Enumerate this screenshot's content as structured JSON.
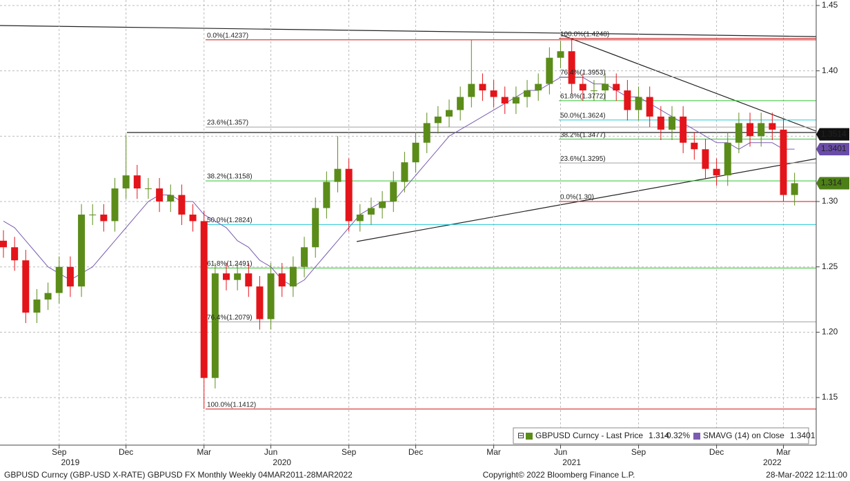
{
  "chart_data": {
    "type": "candlestick",
    "categories": [
      null,
      null,
      null,
      null,
      null,
      "Sep",
      null,
      null,
      null,
      null,
      null,
      "Dec",
      null,
      null,
      null,
      null,
      null,
      null,
      "Mar",
      null,
      null,
      null,
      null,
      null,
      "Jun",
      null,
      null,
      null,
      null,
      null,
      null,
      "Sep",
      null,
      null,
      null,
      null,
      null,
      "Dec",
      null,
      null,
      null,
      null,
      null,
      null,
      "Mar",
      null,
      null,
      null,
      null,
      null,
      "Jun",
      null,
      null,
      null,
      null,
      null,
      null,
      "Sep",
      null,
      null,
      null,
      null,
      null,
      null,
      "Dec",
      null,
      null,
      null,
      null,
      null,
      "Mar",
      null
    ],
    "years": [
      null,
      null,
      null,
      null,
      null,
      null,
      "2019",
      null,
      null,
      null,
      null,
      null,
      null,
      null,
      null,
      null,
      null,
      null,
      null,
      null,
      null,
      null,
      null,
      null,
      null,
      "2020",
      null,
      null,
      null,
      null,
      null,
      null,
      null,
      null,
      null,
      null,
      null,
      null,
      null,
      null,
      null,
      null,
      null,
      null,
      null,
      null,
      null,
      null,
      null,
      null,
      null,
      "2021",
      null,
      null,
      null,
      null,
      null,
      null,
      null,
      null,
      null,
      null,
      null,
      null,
      null,
      null,
      null,
      null,
      null,
      "2022",
      null,
      null
    ],
    "open": [
      1.27,
      1.265,
      1.255,
      1.215,
      1.225,
      1.23,
      1.25,
      1.235,
      1.29,
      1.29,
      1.285,
      1.31,
      1.32,
      1.31,
      1.31,
      1.3,
      1.305,
      1.29,
      1.285,
      1.165,
      1.245,
      1.24,
      1.245,
      1.235,
      1.21,
      1.245,
      1.235,
      1.25,
      1.265,
      1.295,
      1.315,
      1.325,
      1.285,
      1.29,
      1.295,
      1.3,
      1.315,
      1.33,
      1.345,
      1.36,
      1.365,
      1.37,
      1.38,
      1.39,
      1.385,
      1.38,
      1.375,
      1.38,
      1.385,
      1.39,
      1.41,
      1.415,
      1.39,
      1.385,
      1.385,
      1.39,
      1.385,
      1.37,
      1.38,
      1.365,
      1.355,
      1.365,
      1.345,
      1.34,
      1.325,
      1.32,
      1.345,
      1.36,
      1.35,
      1.36,
      1.355,
      1.305
    ],
    "high": [
      1.278,
      1.273,
      1.263,
      1.233,
      1.238,
      1.258,
      1.258,
      1.298,
      1.298,
      1.298,
      1.318,
      1.351,
      1.328,
      1.318,
      1.318,
      1.313,
      1.313,
      1.298,
      1.293,
      1.253,
      1.253,
      1.253,
      1.253,
      1.243,
      1.253,
      1.253,
      1.258,
      1.273,
      1.303,
      1.323,
      1.35,
      1.333,
      1.298,
      1.303,
      1.308,
      1.323,
      1.338,
      1.353,
      1.368,
      1.373,
      1.378,
      1.388,
      1.424,
      1.398,
      1.393,
      1.388,
      1.388,
      1.393,
      1.398,
      1.418,
      1.423,
      1.4248,
      1.398,
      1.393,
      1.398,
      1.398,
      1.393,
      1.388,
      1.388,
      1.373,
      1.373,
      1.373,
      1.353,
      1.348,
      1.333,
      1.353,
      1.368,
      1.368,
      1.368,
      1.368,
      1.363,
      1.322
    ],
    "low": [
      1.257,
      1.247,
      1.207,
      1.207,
      1.217,
      1.222,
      1.227,
      1.227,
      1.282,
      1.277,
      1.277,
      1.302,
      1.302,
      1.302,
      1.292,
      1.292,
      1.282,
      1.277,
      1.1412,
      1.157,
      1.232,
      1.232,
      1.227,
      1.202,
      1.202,
      1.227,
      1.227,
      1.242,
      1.257,
      1.287,
      1.307,
      1.277,
      1.277,
      1.282,
      1.287,
      1.292,
      1.307,
      1.322,
      1.337,
      1.352,
      1.357,
      1.362,
      1.372,
      1.377,
      1.372,
      1.367,
      1.367,
      1.372,
      1.377,
      1.382,
      1.402,
      1.382,
      1.377,
      1.377,
      1.377,
      1.377,
      1.362,
      1.362,
      1.357,
      1.347,
      1.347,
      1.337,
      1.332,
      1.317,
      1.312,
      1.312,
      1.337,
      1.342,
      1.342,
      1.347,
      1.3,
      1.297
    ],
    "close": [
      1.265,
      1.255,
      1.215,
      1.225,
      1.23,
      1.25,
      1.235,
      1.29,
      1.29,
      1.285,
      1.31,
      1.32,
      1.31,
      1.31,
      1.3,
      1.305,
      1.29,
      1.285,
      1.165,
      1.245,
      1.24,
      1.245,
      1.235,
      1.21,
      1.245,
      1.235,
      1.25,
      1.265,
      1.295,
      1.315,
      1.325,
      1.285,
      1.29,
      1.295,
      1.3,
      1.315,
      1.33,
      1.345,
      1.36,
      1.365,
      1.37,
      1.38,
      1.39,
      1.385,
      1.38,
      1.375,
      1.38,
      1.385,
      1.39,
      1.41,
      1.415,
      1.39,
      1.385,
      1.385,
      1.39,
      1.385,
      1.37,
      1.38,
      1.365,
      1.355,
      1.365,
      1.345,
      1.34,
      1.325,
      1.32,
      1.345,
      1.36,
      1.35,
      1.36,
      1.355,
      1.305,
      1.314
    ],
    "sma": [
      1.285,
      1.28,
      1.27,
      1.26,
      1.25,
      1.245,
      1.24,
      1.245,
      1.25,
      1.26,
      1.27,
      1.28,
      1.29,
      1.3,
      1.305,
      1.305,
      1.3,
      1.3,
      1.29,
      1.285,
      1.28,
      1.27,
      1.265,
      1.255,
      1.25,
      1.24,
      1.235,
      1.24,
      1.25,
      1.26,
      1.27,
      1.28,
      1.29,
      1.295,
      1.3,
      1.3,
      1.31,
      1.32,
      1.33,
      1.34,
      1.35,
      1.355,
      1.36,
      1.365,
      1.37,
      1.375,
      1.38,
      1.385,
      1.385,
      1.39,
      1.395,
      1.395,
      1.395,
      1.39,
      1.39,
      1.385,
      1.38,
      1.38,
      1.375,
      1.37,
      1.365,
      1.36,
      1.355,
      1.35,
      1.345,
      1.345,
      1.34,
      1.345,
      1.345,
      1.345,
      1.34,
      1.3401
    ],
    "up_color": "#5b8c1a",
    "down_color": "#e4141b",
    "sma_color": "#7a5cb0",
    "ylim": [
      1.1136,
      1.4542
    ],
    "yticks": [
      1.45,
      {
        "value": 1.4,
        "label": "1.40"
      },
      {
        "value": 1.3,
        "label": "1.30"
      },
      1.25,
      {
        "value": 1.2,
        "label": "1.20"
      },
      1.15
    ],
    "grid_values": [
      1.45,
      1.4,
      1.35,
      1.3,
      1.25,
      1.2,
      1.15
    ],
    "fib_left": [
      {
        "label": "0.0%(1.4237)",
        "value": 1.4237,
        "color": "#d01010"
      },
      {
        "label": "23.6%(1.357)",
        "value": 1.357,
        "color": "#a0a0a0"
      },
      {
        "label": "38.2%(1.3158)",
        "value": 1.3158,
        "color": "#30c030"
      },
      {
        "label": "50.0%(1.2824)",
        "value": 1.2824,
        "color": "#20c8d8"
      },
      {
        "label": "61.8%(1.2491)",
        "value": 1.2491,
        "color": "#30c030"
      },
      {
        "label": "76.4%(1.2079)",
        "value": 1.2079,
        "color": "#a0a0a0"
      },
      {
        "label": "100.0%(1.1412)",
        "value": 1.1412,
        "color": "#d01010"
      }
    ],
    "fib_right": [
      {
        "label": "100.0%(1.4248)",
        "value": 1.4248,
        "color": "#d01010"
      },
      {
        "label": "76.4%(1.3953)",
        "value": 1.3953,
        "color": "#a0a0a0"
      },
      {
        "label": "61.8%(1.3772)",
        "value": 1.3772,
        "color": "#30c030"
      },
      {
        "label": "50.0%(1.3624)",
        "value": 1.3624,
        "color": "#20c8d8"
      },
      {
        "label": "38.2%(1.3477)",
        "value": 1.3477,
        "color": "#30c030"
      },
      {
        "label": "23.6%(1.3295)",
        "value": 1.3295,
        "color": "#a0a0a0"
      },
      {
        "label": "0.0%(1.30)",
        "value": 1.3,
        "color": "#d01010"
      }
    ],
    "price_tags": [
      {
        "value": 1.3514,
        "color": "#111111"
      },
      {
        "value": 1.3401,
        "color": "#6a4ca8"
      },
      {
        "value": 1.314,
        "color": "#4d7f18"
      }
    ],
    "legend": [
      {
        "name": "GBPUSD Curncy  - Last Price",
        "value": 1.314,
        "change": "-0.32%"
      },
      {
        "name": "SMAVG (14)  on Close",
        "value": 1.3401
      }
    ],
    "footer": {
      "left": "GBPUSD Curncy (GBP-USD X-RATE) GBPUSD FX Monthly  Weekly 04MAR2011-28MAR2022",
      "center": "Copyright© 2022 Bloomberg Finance L.P.",
      "right": "28-Mar-2022 12:11:00"
    }
  }
}
